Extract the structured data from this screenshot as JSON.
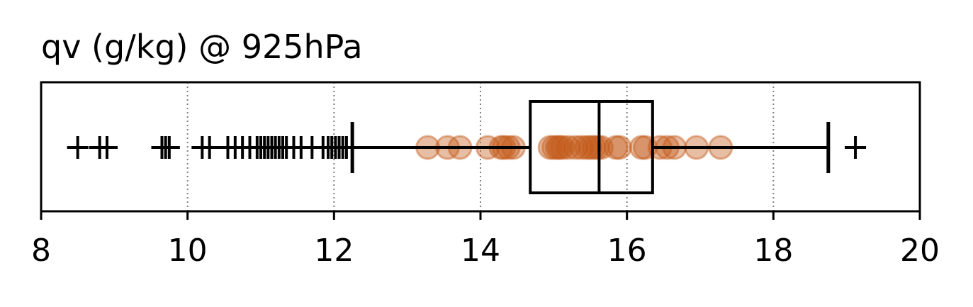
{
  "chart_data": {
    "type": "box",
    "orientation": "horizontal",
    "title": "qv (g/kg) @ 925hPa",
    "xlim": [
      8,
      20
    ],
    "xticks": [
      "8",
      "10",
      "12",
      "14",
      "16",
      "18",
      "20"
    ],
    "grid": "vertical dotted",
    "box": {
      "whisker_low": 12.25,
      "q1": 14.68,
      "median": 15.62,
      "q3": 16.35,
      "whisker_high": 18.75
    },
    "outliers": [
      8.5,
      8.8,
      8.9,
      9.65,
      9.7,
      9.75,
      10.2,
      10.3,
      10.55,
      10.65,
      10.75,
      10.85,
      10.95,
      11.0,
      11.05,
      11.1,
      11.15,
      11.2,
      11.25,
      11.3,
      11.35,
      11.45,
      11.55,
      11.7,
      11.85,
      11.92,
      11.97,
      12.02,
      12.07,
      12.12,
      12.17,
      19.12
    ],
    "observations": [
      13.28,
      13.55,
      13.72,
      14.1,
      14.28,
      14.32,
      14.38,
      14.45,
      14.95,
      15.0,
      15.05,
      15.08,
      15.12,
      15.2,
      15.3,
      15.38,
      15.45,
      15.5,
      15.55,
      15.6,
      15.65,
      15.85,
      15.9,
      16.2,
      16.25,
      16.45,
      16.55,
      16.65,
      16.95,
      17.28
    ],
    "colors": {
      "box": "#000000",
      "observations": "#c45a1a",
      "grid": "#808080"
    }
  }
}
